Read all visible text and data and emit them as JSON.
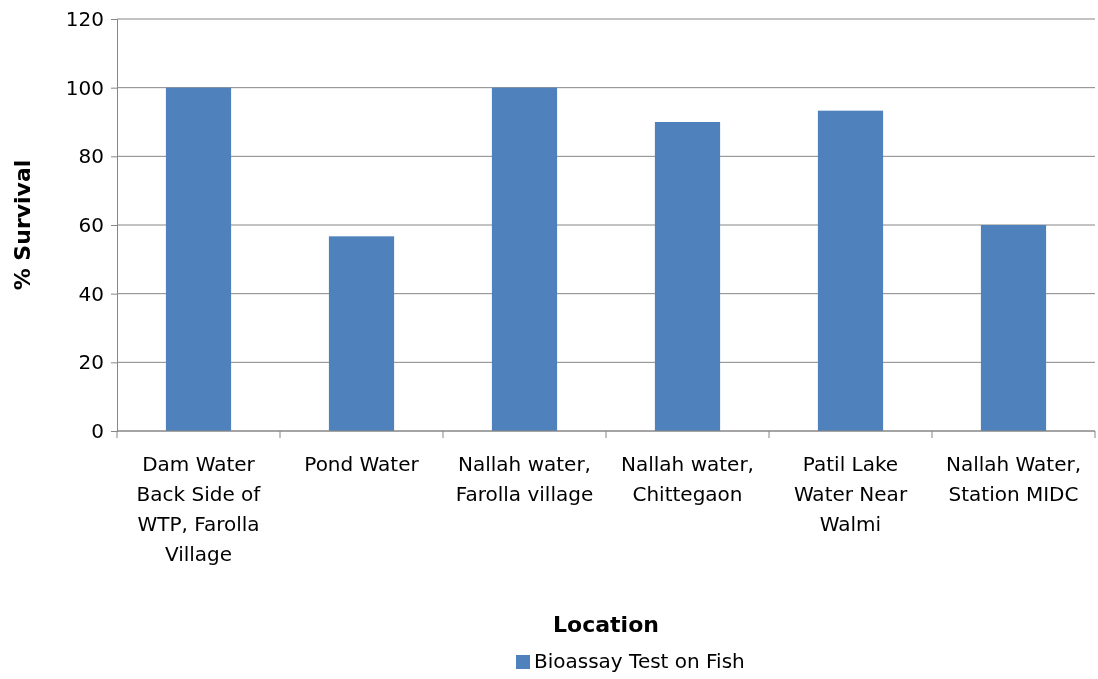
{
  "chart_data": {
    "type": "bar",
    "xlabel": "Location",
    "ylabel": "% Survival",
    "categories": [
      "Dam Water Back Side of WTP, Farolla Village",
      "Pond Water",
      "Nallah water, Farolla village",
      "Nallah water, Chittegaon",
      "Patil Lake Water Near Walmi",
      "Nallah Water, Station MIDC"
    ],
    "series": [
      {
        "name": "Bioassay Test on Fish",
        "color": "#4f81bd",
        "values": [
          100,
          56.7,
          100,
          90,
          93.3,
          60
        ]
      }
    ],
    "ylim": [
      0,
      120
    ],
    "yticks": [
      0,
      20,
      40,
      60,
      80,
      100,
      120
    ],
    "grid": "y",
    "legend": "bottom"
  }
}
